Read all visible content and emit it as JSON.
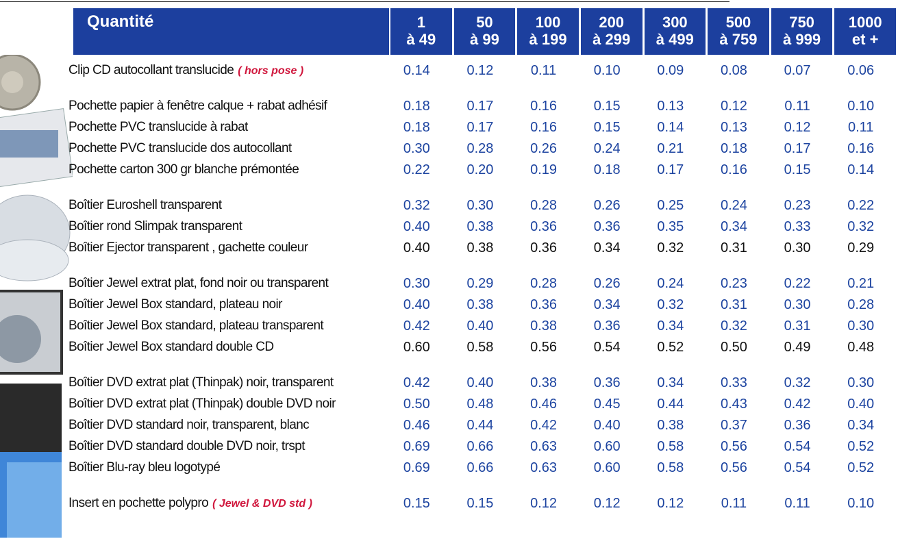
{
  "table": {
    "header": {
      "title": "Quantité",
      "columns": [
        [
          "1",
          "à 49"
        ],
        [
          "50",
          "à 99"
        ],
        [
          "100",
          "à 199"
        ],
        [
          "200",
          "à 299"
        ],
        [
          "300",
          "à 499"
        ],
        [
          "500",
          "à 759"
        ],
        [
          "750",
          "à 999"
        ],
        [
          "1000",
          "et +"
        ]
      ]
    },
    "groups": [
      {
        "rows": [
          {
            "label": "Clip CD autocollant translucide",
            "note": "( hors pose )",
            "color": "#1d44a0",
            "prices": [
              "0.14",
              "0.12",
              "0.11",
              "0.10",
              "0.09",
              "0.08",
              "0.07",
              "0.06"
            ]
          }
        ]
      },
      {
        "rows": [
          {
            "label": "Pochette papier à fenêtre calque + rabat adhésif",
            "color": "#1d44a0",
            "prices": [
              "0.18",
              "0.17",
              "0.16",
              "0.15",
              "0.13",
              "0.12",
              "0.11",
              "0.10"
            ]
          },
          {
            "label": "Pochette PVC translucide à rabat",
            "color": "#1d44a0",
            "prices": [
              "0.18",
              "0.17",
              "0.16",
              "0.15",
              "0.14",
              "0.13",
              "0.12",
              "0.11"
            ]
          },
          {
            "label": "Pochette PVC translucide dos autocollant",
            "color": "#1d44a0",
            "prices": [
              "0.30",
              "0.28",
              "0.26",
              "0.24",
              "0.21",
              "0.18",
              "0.17",
              "0.16"
            ]
          },
          {
            "label": "Pochette carton 300 gr blanche prémontée",
            "color": "#1d44a0",
            "prices": [
              "0.22",
              "0.20",
              "0.19",
              "0.18",
              "0.17",
              "0.16",
              "0.15",
              "0.14"
            ]
          }
        ]
      },
      {
        "rows": [
          {
            "label": "Boîtier Euroshell  transparent",
            "color": "#1d44a0",
            "prices": [
              "0.32",
              "0.30",
              "0.28",
              "0.26",
              "0.25",
              "0.24",
              "0.23",
              "0.22"
            ]
          },
          {
            "label": "Boîtier  rond Slimpak  transparent",
            "color": "#1d44a0",
            "prices": [
              "0.40",
              "0.38",
              "0.36",
              "0.36",
              "0.35",
              "0.34",
              "0.33",
              "0.32"
            ]
          },
          {
            "label": "Boîtier Ejector  transparent , gachette couleur",
            "color": "#111111",
            "prices": [
              "0.40",
              "0.38",
              "0.36",
              "0.34",
              "0.32",
              "0.31",
              "0.30",
              "0.29"
            ]
          }
        ]
      },
      {
        "rows": [
          {
            "label": "Boîtier Jewel extrat plat, fond noir ou transparent",
            "color": "#1d44a0",
            "prices": [
              "0.30",
              "0.29",
              "0.28",
              "0.26",
              "0.24",
              "0.23",
              "0.22",
              "0.21"
            ]
          },
          {
            "label": "Boîtier Jewel Box standard, plateau noir",
            "color": "#1d44a0",
            "prices": [
              "0.40",
              "0.38",
              "0.36",
              "0.34",
              "0.32",
              "0.31",
              "0.30",
              "0.28"
            ]
          },
          {
            "label": "Boîtier Jewel Box standard, plateau transparent",
            "color": "#1d44a0",
            "prices": [
              "0.42",
              "0.40",
              "0.38",
              "0.36",
              "0.34",
              "0.32",
              "0.31",
              "0.30"
            ]
          },
          {
            "label": "Boîtier Jewel Box standard double CD",
            "color": "#111111",
            "prices": [
              "0.60",
              "0.58",
              "0.56",
              "0.54",
              "0.52",
              "0.50",
              "0.49",
              "0.48"
            ]
          }
        ]
      },
      {
        "rows": [
          {
            "label": "Boîtier DVD extrat plat (Thinpak) noir, transparent",
            "color": "#1d44a0",
            "prices": [
              "0.42",
              "0.40",
              "0.38",
              "0.36",
              "0.34",
              "0.33",
              "0.32",
              "0.30"
            ]
          },
          {
            "label": "Boîtier DVD extrat plat (Thinpak) double DVD noir",
            "color": "#1d44a0",
            "prices": [
              "0.50",
              "0.48",
              "0.46",
              "0.45",
              "0.44",
              "0.43",
              "0.42",
              "0.40"
            ]
          },
          {
            "label": "Boîtier DVD standard noir, transparent, blanc",
            "color": "#1d44a0",
            "prices": [
              "0.46",
              "0.44",
              "0.42",
              "0.40",
              "0.38",
              "0.37",
              "0.36",
              "0.34"
            ]
          },
          {
            "label": "Boîtier DVD standard double DVD noir, trspt",
            "color": "#1d44a0",
            "prices": [
              "0.69",
              "0.66",
              "0.63",
              "0.60",
              "0.58",
              "0.56",
              "0.54",
              "0.52"
            ]
          },
          {
            "label": "Boîtier Blu-ray bleu logotypé",
            "color": "#1d44a0",
            "prices": [
              "0.69",
              "0.66",
              "0.63",
              "0.60",
              "0.58",
              "0.56",
              "0.54",
              "0.52"
            ]
          }
        ]
      },
      {
        "rows": [
          {
            "label": "Insert en pochette polypro",
            "note": "( Jewel & DVD std )",
            "color": "#1d44a0",
            "prices": [
              "0.15",
              "0.15",
              "0.12",
              "0.12",
              "0.12",
              "0.11",
              "0.11",
              "0.10"
            ]
          }
        ]
      }
    ]
  }
}
